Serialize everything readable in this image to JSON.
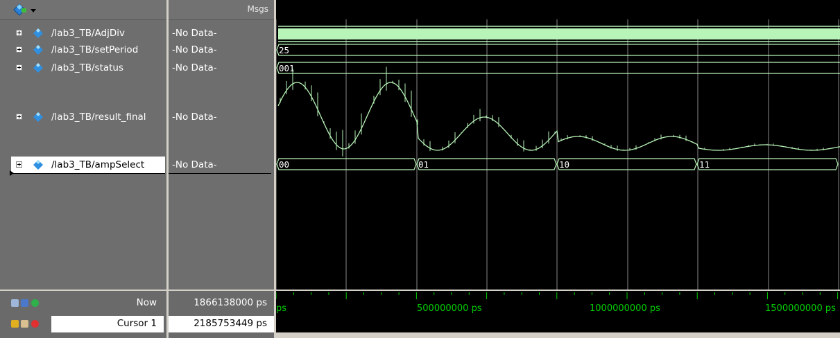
{
  "toolbar": {
    "icon": "wave-diamond-dropdown-icon"
  },
  "header": {
    "msgs_label": "Msgs"
  },
  "signals": [
    {
      "name": "/lab3_TB/AdjDiv",
      "value": "-No Data-"
    },
    {
      "name": "/lab3_TB/setPeriod",
      "value": "-No Data-",
      "bus_value": "25"
    },
    {
      "name": "/lab3_TB/status",
      "value": "-No Data-",
      "bus_value": "001"
    },
    {
      "name": "/lab3_TB/result_final",
      "value": "-No Data-"
    },
    {
      "name": "/lab3_TB/ampSelect",
      "value": "-No Data-",
      "bus_values": [
        "00",
        "01",
        "10",
        "11"
      ]
    }
  ],
  "footer": {
    "now_label": "Now",
    "now_value": "1866138000 ps",
    "cursor_label": "Cursor 1",
    "cursor_value": "2185753449 ps"
  },
  "timeline": {
    "start_label": "ps",
    "labels": [
      "500000000 ps",
      "1000000000 ps",
      "1500000000 ps"
    ]
  },
  "colors": {
    "wave": "#b8f4b8",
    "background": "#000000",
    "timeline": "#00d000"
  }
}
